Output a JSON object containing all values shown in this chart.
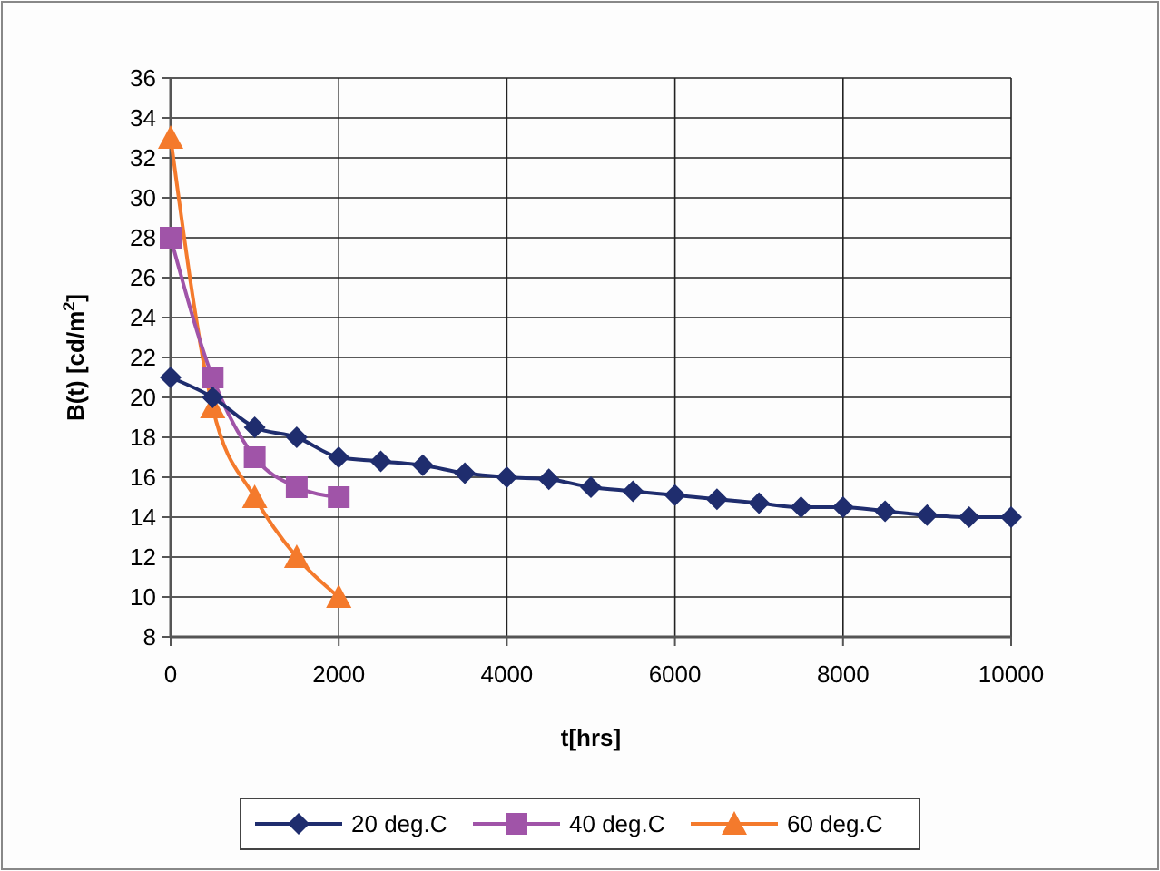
{
  "chart_data": {
    "type": "line",
    "xlabel": "t[hrs]",
    "ylabel": "B(t) [cd/m$^{2}$]",
    "xlim": [
      0,
      10000
    ],
    "xticks": [
      0,
      2000,
      4000,
      6000,
      8000,
      10000
    ],
    "ylim": [
      8,
      36
    ],
    "yticks": [
      8,
      10,
      12,
      14,
      16,
      18,
      20,
      22,
      24,
      26,
      28,
      30,
      32,
      34,
      36
    ],
    "grid": true,
    "legend": "bottom",
    "line_style": "solid",
    "series": [
      {
        "name": "20 deg.C",
        "color": "#1f2d6e",
        "marker": "diamond",
        "x": [
          0,
          500,
          1000,
          1500,
          2000,
          2500,
          3000,
          3500,
          4000,
          4500,
          5000,
          5500,
          6000,
          6500,
          7000,
          7500,
          8000,
          8500,
          9000,
          9500,
          10000
        ],
        "values": [
          21,
          20,
          18.5,
          18,
          17,
          16.8,
          16.6,
          16.2,
          16,
          15.9,
          15.5,
          15.3,
          15.1,
          14.9,
          14.7,
          14.5,
          14.5,
          14.3,
          14.1,
          14,
          14
        ]
      },
      {
        "name": "40 deg.C",
        "color": "#a054a8",
        "marker": "square",
        "x": [
          0,
          500,
          1000,
          1500,
          2000
        ],
        "values": [
          28,
          21,
          17,
          15.5,
          15
        ]
      },
      {
        "name": "60 deg.C",
        "color": "#f47a2c",
        "marker": "triangle",
        "x": [
          0,
          500,
          1000,
          1500,
          2000
        ],
        "values": [
          33,
          19.5,
          15,
          12,
          10
        ]
      }
    ]
  }
}
